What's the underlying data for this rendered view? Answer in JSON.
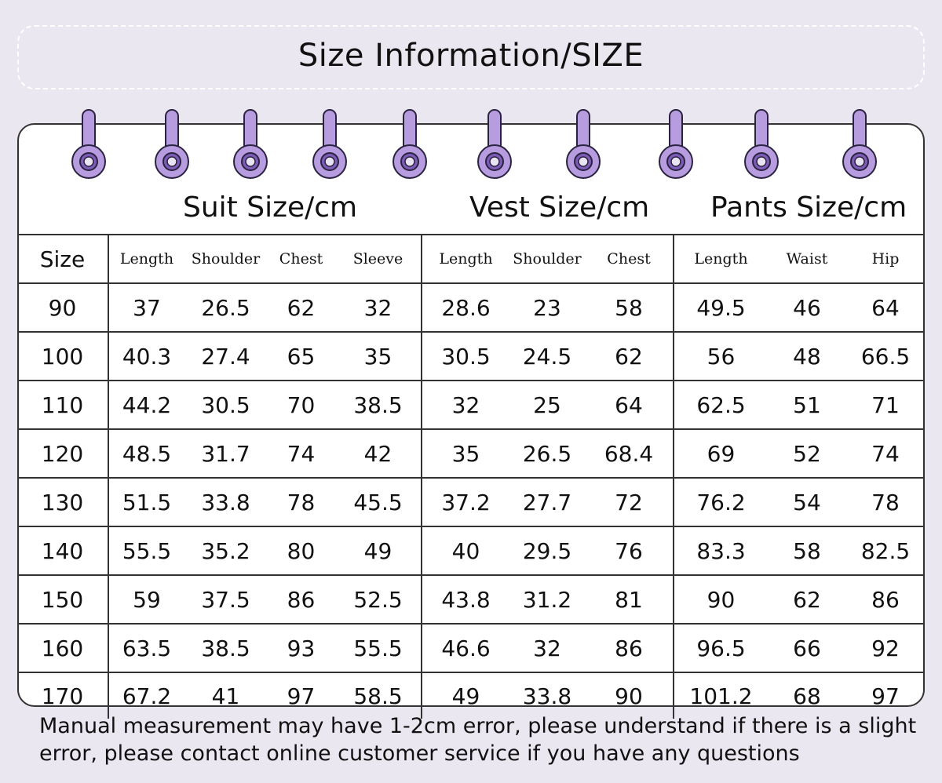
{
  "title": "Size Information/SIZE",
  "sections": {
    "suit": "Suit Size/cm",
    "vest": "Vest Size/cm",
    "pants": "Pants Size/cm"
  },
  "columns": {
    "size": "Size",
    "suit": [
      "Length",
      "Shoulder",
      "Chest",
      "Sleeve"
    ],
    "vest": [
      "Length",
      "Shoulder",
      "Chest"
    ],
    "pants": [
      "Length",
      "Waist",
      "Hip"
    ]
  },
  "rows": [
    [
      "90",
      "37",
      "26.5",
      "62",
      "32",
      "28.6",
      "23",
      "58",
      "49.5",
      "46",
      "64"
    ],
    [
      "100",
      "40.3",
      "27.4",
      "65",
      "35",
      "30.5",
      "24.5",
      "62",
      "56",
      "48",
      "66.5"
    ],
    [
      "110",
      "44.2",
      "30.5",
      "70",
      "38.5",
      "32",
      "25",
      "64",
      "62.5",
      "51",
      "71"
    ],
    [
      "120",
      "48.5",
      "31.7",
      "74",
      "42",
      "35",
      "26.5",
      "68.4",
      "69",
      "52",
      "74"
    ],
    [
      "130",
      "51.5",
      "33.8",
      "78",
      "45.5",
      "37.2",
      "27.7",
      "72",
      "76.2",
      "54",
      "78"
    ],
    [
      "140",
      "55.5",
      "35.2",
      "80",
      "49",
      "40",
      "29.5",
      "76",
      "83.3",
      "58",
      "82.5"
    ],
    [
      "150",
      "59",
      "37.5",
      "86",
      "52.5",
      "43.8",
      "31.2",
      "81",
      "90",
      "62",
      "86"
    ],
    [
      "160",
      "63.5",
      "38.5",
      "93",
      "55.5",
      "46.6",
      "32",
      "86",
      "96.5",
      "66",
      "92"
    ],
    [
      "170",
      "67.2",
      "41",
      "97",
      "58.5",
      "49",
      "33.8",
      "90",
      "101.2",
      "68",
      "97"
    ]
  ],
  "note": "Manual measurement may have 1-2cm error, please understand if there is a slight error, please contact online customer service if you have any questions",
  "colors": {
    "ring": "#b79de0",
    "ring_dark": "#7d5cb8",
    "background": "#ebe7f1",
    "lines": "#333333"
  }
}
